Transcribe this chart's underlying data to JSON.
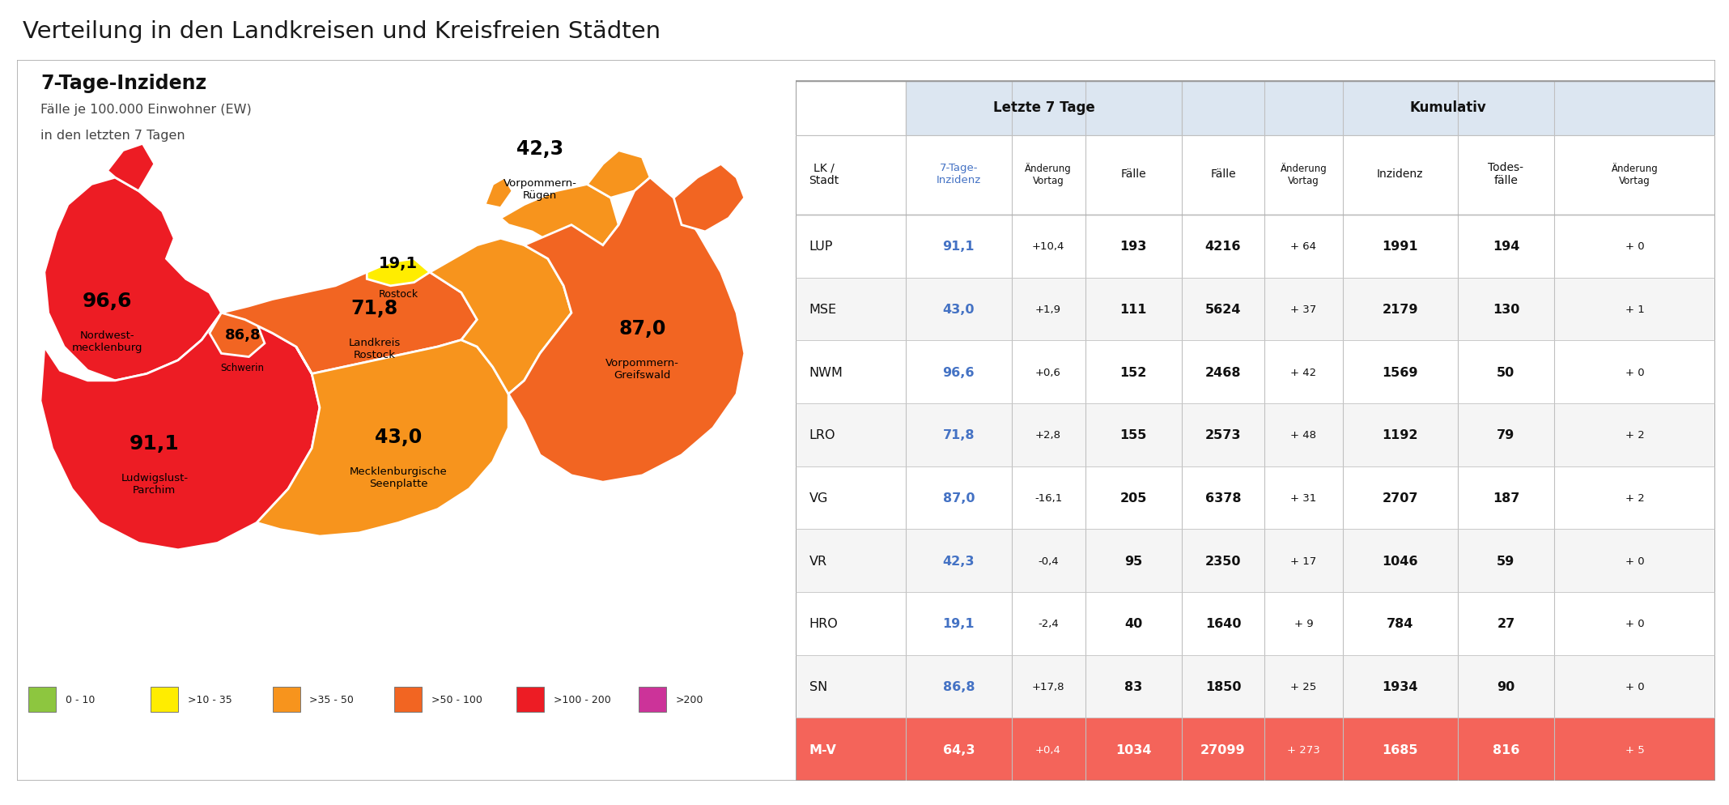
{
  "title": "Verteilung in den Landkreisen und Kreisfreien Städten",
  "map_title": "7-Tage-Inzidenz",
  "map_subtitle1": "Fälle je 100.000 Einwohner (EW)",
  "map_subtitle2": "in den letzten 7 Tagen",
  "legend_items": [
    {
      "label": "0 - 10",
      "color": "#8dc63f"
    },
    {
      "label": ">10 - 35",
      "color": "#ffed00"
    },
    {
      "label": ">35 - 50",
      "color": "#f7941d"
    },
    {
      "label": ">50 - 100",
      "color": "#f26522"
    },
    {
      "label": ">100 - 200",
      "color": "#ed1c24"
    },
    {
      "label": ">200",
      "color": "#cc3399"
    }
  ],
  "rows": [
    {
      "lk": "LUP",
      "inzidenz": "91,1",
      "aend1": "+10,4",
      "faelle1": "193",
      "faelle2": "4216",
      "aend2": "+ 64",
      "inzidenz2": "1991",
      "tode": "194",
      "aend3": "+ 0"
    },
    {
      "lk": "MSE",
      "inzidenz": "43,0",
      "aend1": "+1,9",
      "faelle1": "111",
      "faelle2": "5624",
      "aend2": "+ 37",
      "inzidenz2": "2179",
      "tode": "130",
      "aend3": "+ 1"
    },
    {
      "lk": "NWM",
      "inzidenz": "96,6",
      "aend1": "+0,6",
      "faelle1": "152",
      "faelle2": "2468",
      "aend2": "+ 42",
      "inzidenz2": "1569",
      "tode": "50",
      "aend3": "+ 0"
    },
    {
      "lk": "LRO",
      "inzidenz": "71,8",
      "aend1": "+2,8",
      "faelle1": "155",
      "faelle2": "2573",
      "aend2": "+ 48",
      "inzidenz2": "1192",
      "tode": "79",
      "aend3": "+ 2"
    },
    {
      "lk": "VG",
      "inzidenz": "87,0",
      "aend1": "-16,1",
      "faelle1": "205",
      "faelle2": "6378",
      "aend2": "+ 31",
      "inzidenz2": "2707",
      "tode": "187",
      "aend3": "+ 2"
    },
    {
      "lk": "VR",
      "inzidenz": "42,3",
      "aend1": "-0,4",
      "faelle1": "95",
      "faelle2": "2350",
      "aend2": "+ 17",
      "inzidenz2": "1046",
      "tode": "59",
      "aend3": "+ 0"
    },
    {
      "lk": "HRO",
      "inzidenz": "19,1",
      "aend1": "-2,4",
      "faelle1": "40",
      "faelle2": "1640",
      "aend2": "+ 9",
      "inzidenz2": "784",
      "tode": "27",
      "aend3": "+ 0"
    },
    {
      "lk": "SN",
      "inzidenz": "86,8",
      "aend1": "+17,8",
      "faelle1": "83",
      "faelle2": "1850",
      "aend2": "+ 25",
      "inzidenz2": "1934",
      "tode": "90",
      "aend3": "+ 0"
    },
    {
      "lk": "M-V",
      "inzidenz": "64,3",
      "aend1": "+0,4",
      "faelle1": "1034",
      "faelle2": "27099",
      "aend2": "+ 273",
      "inzidenz2": "1685",
      "tode": "816",
      "aend3": "+ 5",
      "highlight": true
    }
  ],
  "c_red": "#ed1c24",
  "c_darkred": "#c1121f",
  "c_orange_d": "#f26522",
  "c_orange": "#f7941d",
  "c_yellow": "#ffed00",
  "c_green": "#8dc63f"
}
